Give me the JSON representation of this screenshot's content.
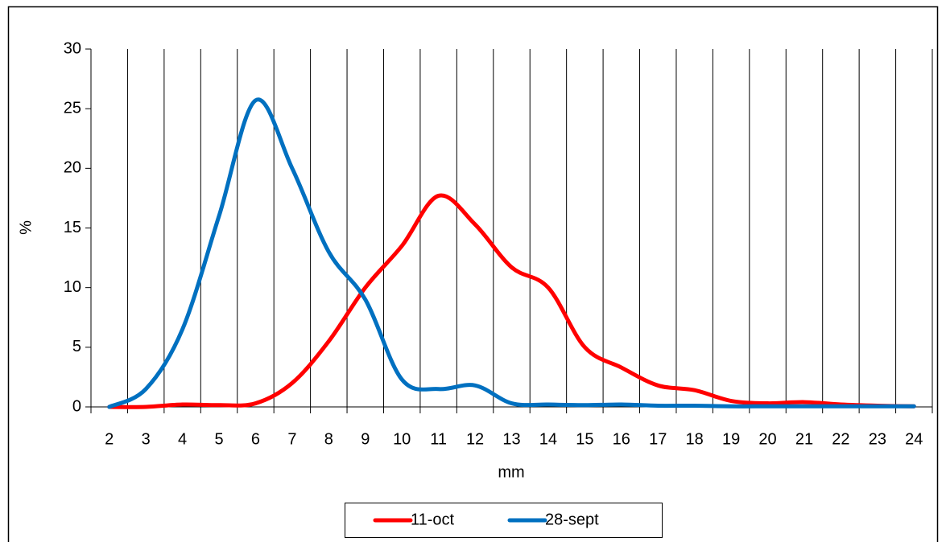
{
  "chart_data": {
    "type": "line",
    "x_label": "mm",
    "y_label": "%",
    "categories": [
      "2",
      "3",
      "4",
      "5",
      "6",
      "7",
      "8",
      "9",
      "10",
      "11",
      "12",
      "13",
      "14",
      "15",
      "16",
      "17",
      "18",
      "19",
      "20",
      "21",
      "22",
      "23",
      "24"
    ],
    "series": [
      {
        "name": "11-oct",
        "color": "#ff0000",
        "values": [
          0,
          0,
          0.2,
          0.15,
          0.3,
          2,
          5.5,
          10,
          13.5,
          17.7,
          15.3,
          11.7,
          10,
          5,
          3.3,
          1.8,
          1.4,
          0.5,
          0.3,
          0.4,
          0.2,
          0.1,
          0.05
        ]
      },
      {
        "name": "28-sept",
        "color": "#0070c0",
        "values": [
          0,
          1.5,
          6.5,
          16,
          25.7,
          20,
          13,
          9,
          2.3,
          1.5,
          1.8,
          0.3,
          0.2,
          0.15,
          0.2,
          0.1,
          0.1,
          0.05,
          0.05,
          0.05,
          0.05,
          0.05,
          0.05
        ]
      }
    ],
    "ylim": [
      0,
      30
    ],
    "yticks": [
      0,
      5,
      10,
      15,
      20,
      25,
      30
    ],
    "grid": true,
    "smooth": true
  }
}
